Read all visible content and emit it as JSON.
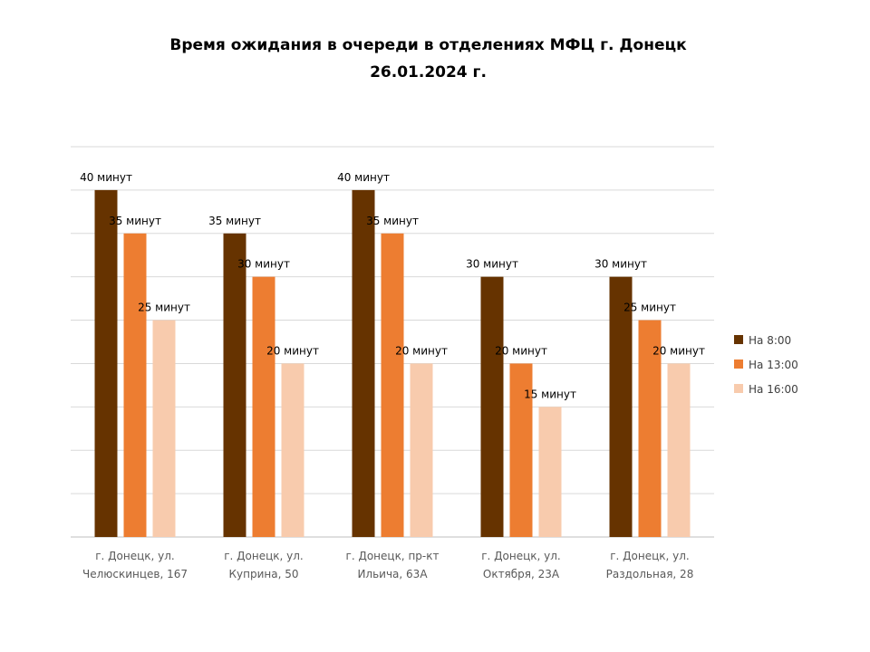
{
  "chart_data": {
    "type": "bar",
    "title": "Время ожидания в очереди в отделениях МФЦ г. Донецк",
    "subtitle": "26.01.2024 г.",
    "xlabel": "",
    "ylabel": "",
    "ylim": [
      0,
      45
    ],
    "grid": true,
    "legend_position": "right",
    "value_suffix": " минут",
    "categories": [
      [
        "г. Донецк, ул.",
        "Челюскинцев, 167"
      ],
      [
        "г. Донецк, ул.",
        "Куприна, 50"
      ],
      [
        "г. Донецк, пр-кт",
        "Ильича, 63А"
      ],
      [
        "г. Донецк, ул.",
        "Октября, 23А"
      ],
      [
        "г. Донецк, ул.",
        "Раздольная, 28"
      ]
    ],
    "series": [
      {
        "name": "На 8:00",
        "color": "#663300",
        "values": [
          40,
          35,
          40,
          30,
          30
        ]
      },
      {
        "name": "На 13:00",
        "color": "#ED7D31",
        "values": [
          35,
          30,
          35,
          20,
          25
        ]
      },
      {
        "name": "На 16:00",
        "color": "#F8CBAD",
        "values": [
          25,
          20,
          20,
          15,
          20
        ]
      }
    ]
  }
}
